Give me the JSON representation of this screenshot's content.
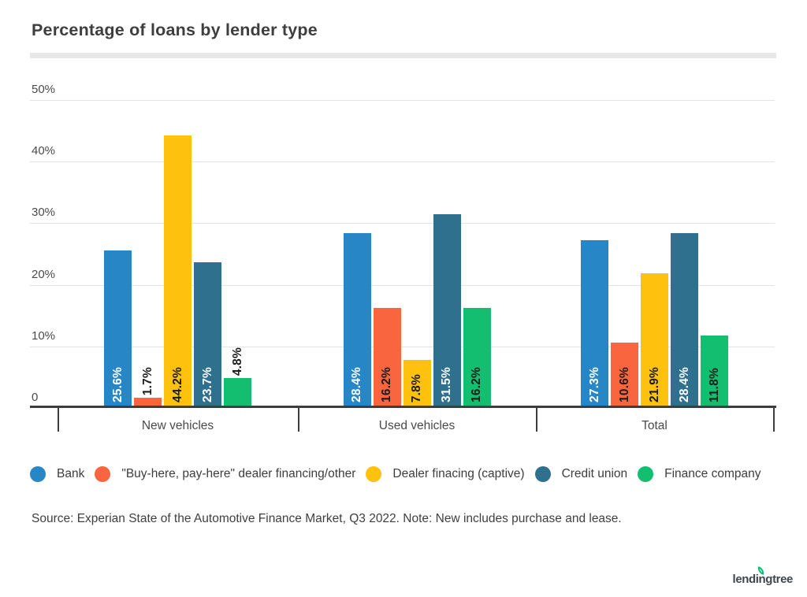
{
  "page": {
    "title": "Percentage of loans by lender type",
    "source_note": "Source: Experian State of the Automotive Finance Market, Q3 2022. Note: New includes purchase and lease.",
    "logo_text": "lendingtree"
  },
  "chart_data": {
    "type": "bar",
    "title": "Percentage of loans by lender type",
    "categories": [
      "New vehicles",
      "Used vehicles",
      "Total"
    ],
    "series": [
      {
        "name": "Bank",
        "color": "#2787C6",
        "label_text_color": "#FFFFFF",
        "values": [
          25.6,
          28.4,
          27.3
        ],
        "labels": [
          "25.6%",
          "28.4%",
          "27.3%"
        ]
      },
      {
        "name": "\"Buy-here, pay-here\" dealer financing/other",
        "color": "#F8653F",
        "label_text_color": "#1B1B1B",
        "values": [
          1.7,
          16.2,
          10.6
        ],
        "labels": [
          "1.7%",
          "16.2%",
          "10.6%"
        ]
      },
      {
        "name": "Dealer finacing (captive)",
        "color": "#FDC10E",
        "label_text_color": "#1B1B1B",
        "values": [
          44.2,
          7.8,
          21.9
        ],
        "labels": [
          "44.2%",
          "7.8%",
          "21.9%"
        ]
      },
      {
        "name": "Credit union",
        "color": "#30708F",
        "label_text_color": "#FFFFFF",
        "values": [
          23.7,
          31.5,
          28.4
        ],
        "labels": [
          "23.7%",
          "31.5%",
          "28.4%"
        ]
      },
      {
        "name": "Finance company",
        "color": "#13BE70",
        "label_text_color": "#1B1B1B",
        "values": [
          4.8,
          16.2,
          11.8
        ],
        "labels": [
          "4.8%",
          "16.2%",
          "11.8%"
        ]
      }
    ],
    "yticks": [
      {
        "label": "50%",
        "value": 50
      },
      {
        "label": "40%",
        "value": 40
      },
      {
        "label": "30%",
        "value": 30
      },
      {
        "label": "20%",
        "value": 20
      },
      {
        "label": "10%",
        "value": 10
      },
      {
        "label": "0",
        "value": 0
      }
    ],
    "ylim": [
      0,
      50
    ],
    "grid": true,
    "legend_position": "bottom",
    "colors": {
      "axis": "#3D3D3D",
      "gridline": "#E3E3E3",
      "leaf_green": "#00C06D"
    }
  }
}
